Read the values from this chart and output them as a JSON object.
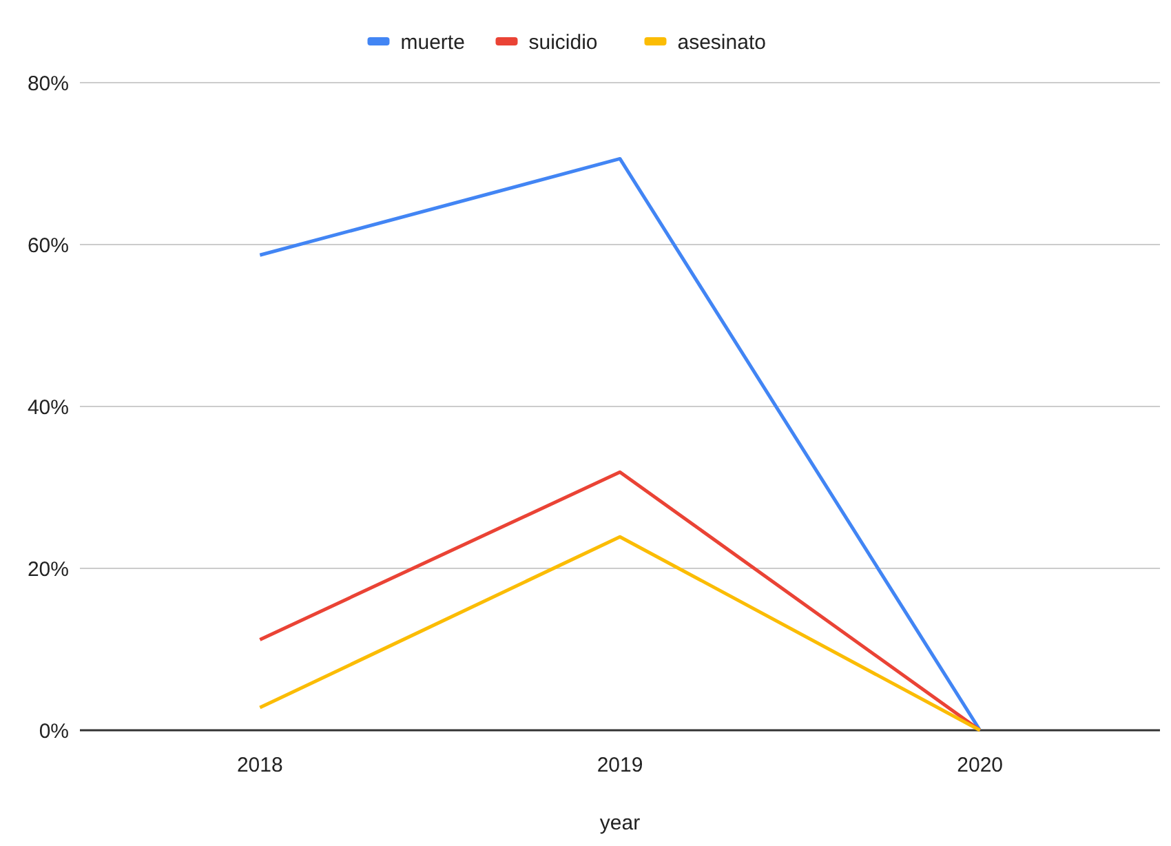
{
  "chart_data": {
    "type": "line",
    "xlabel": "year",
    "categories": [
      "2018",
      "2019",
      "2020"
    ],
    "series": [
      {
        "name": "muerte",
        "color": "#4285f4",
        "values": [
          58.7,
          70.6,
          0
        ]
      },
      {
        "name": "suicidio",
        "color": "#ea4335",
        "values": [
          11.2,
          31.9,
          0
        ]
      },
      {
        "name": "asesinato",
        "color": "#fbbc04",
        "values": [
          2.8,
          23.9,
          0
        ]
      }
    ],
    "ylim": [
      0,
      80
    ],
    "yticks": [
      {
        "value": 0,
        "label": "0%"
      },
      {
        "value": 20,
        "label": "20%"
      },
      {
        "value": 40,
        "label": "40%"
      },
      {
        "value": 60,
        "label": "60%"
      },
      {
        "value": 80,
        "label": "80%"
      }
    ],
    "grid": "y",
    "legend": "top",
    "marker": "none",
    "line_style": "solid"
  }
}
